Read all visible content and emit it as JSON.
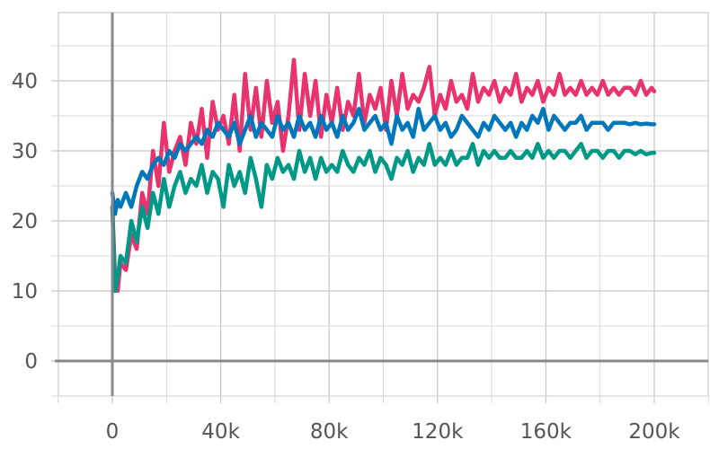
{
  "chart_data": {
    "type": "line",
    "title": "",
    "xlabel": "",
    "ylabel": "",
    "xlim": [
      -10000,
      220000
    ],
    "ylim": [
      -5,
      50
    ],
    "x_ticks": [
      0,
      40000,
      80000,
      120000,
      160000,
      200000
    ],
    "x_tick_labels": [
      "0",
      "40k",
      "80k",
      "120k",
      "160k",
      "200k"
    ],
    "y_ticks": [
      0,
      10,
      20,
      30,
      40
    ],
    "y_tick_labels": [
      "0",
      "10",
      "20",
      "30",
      "40"
    ],
    "grid": true,
    "legend": "none",
    "series": [
      {
        "color": "#e8336e",
        "x": [
          0,
          1000,
          2000,
          3000,
          5000,
          7000,
          9000,
          11000,
          13000,
          15000,
          17000,
          19000,
          21000,
          23000,
          25000,
          27000,
          29000,
          31000,
          33000,
          35000,
          37000,
          39000,
          41000,
          43000,
          45000,
          47000,
          49000,
          51000,
          53000,
          55000,
          57000,
          59000,
          61000,
          63000,
          65000,
          67000,
          69000,
          71000,
          73000,
          75000,
          77000,
          79000,
          81000,
          83000,
          85000,
          87000,
          89000,
          91000,
          93000,
          95000,
          97000,
          99000,
          101000,
          103000,
          105000,
          107000,
          109000,
          111000,
          113000,
          115000,
          117000,
          119000,
          121000,
          123000,
          125000,
          127000,
          129000,
          131000,
          133000,
          135000,
          137000,
          139000,
          141000,
          143000,
          145000,
          147000,
          149000,
          151000,
          153000,
          155000,
          157000,
          159000,
          161000,
          163000,
          165000,
          167000,
          169000,
          171000,
          173000,
          175000,
          177000,
          179000,
          181000,
          183000,
          185000,
          187000,
          189000,
          191000,
          193000,
          195000,
          197000,
          199000,
          200000
        ],
        "y": [
          22,
          12,
          10,
          14,
          13,
          18,
          16,
          24,
          21,
          30,
          25,
          34,
          27,
          30,
          32,
          28,
          34,
          31,
          36,
          29,
          37,
          33,
          35,
          31,
          38,
          30,
          41,
          33,
          39,
          32,
          40,
          34,
          37,
          30,
          35,
          43,
          33,
          41,
          35,
          40,
          32,
          38,
          34,
          39,
          33,
          37,
          35,
          41,
          34,
          38,
          36,
          39,
          33,
          40,
          35,
          41,
          36,
          38,
          37,
          39,
          42,
          35,
          38,
          36,
          40,
          37,
          38,
          36,
          41,
          37,
          39,
          38,
          40,
          37,
          39,
          38,
          41,
          37,
          39,
          38,
          40,
          37,
          39,
          38,
          41,
          38,
          39,
          38,
          40,
          38,
          39,
          38,
          40,
          38,
          39,
          38,
          39,
          39,
          38,
          40,
          38,
          39,
          38.5
        ]
      },
      {
        "color": "#009987",
        "x": [
          0,
          1000,
          2000,
          3000,
          5000,
          7000,
          9000,
          11000,
          13000,
          15000,
          17000,
          19000,
          21000,
          23000,
          25000,
          27000,
          29000,
          31000,
          33000,
          35000,
          37000,
          39000,
          41000,
          43000,
          45000,
          47000,
          49000,
          51000,
          53000,
          55000,
          57000,
          59000,
          61000,
          63000,
          65000,
          67000,
          69000,
          71000,
          73000,
          75000,
          77000,
          79000,
          81000,
          83000,
          85000,
          87000,
          89000,
          91000,
          93000,
          95000,
          97000,
          99000,
          101000,
          103000,
          105000,
          107000,
          109000,
          111000,
          113000,
          115000,
          117000,
          119000,
          121000,
          123000,
          125000,
          127000,
          129000,
          131000,
          133000,
          135000,
          137000,
          139000,
          141000,
          143000,
          145000,
          147000,
          149000,
          151000,
          153000,
          155000,
          157000,
          159000,
          161000,
          163000,
          165000,
          167000,
          169000,
          171000,
          173000,
          175000,
          177000,
          179000,
          181000,
          183000,
          185000,
          187000,
          189000,
          191000,
          193000,
          195000,
          197000,
          199000,
          200000
        ],
        "y": [
          22,
          10,
          12,
          15,
          14,
          20,
          17,
          22,
          19,
          24,
          21,
          26,
          22,
          25,
          27,
          24,
          26,
          25,
          28,
          24,
          27,
          26,
          22,
          28,
          25,
          27,
          24,
          29,
          26,
          22,
          28,
          26,
          29,
          27,
          28,
          26,
          30,
          27,
          29,
          26,
          29,
          27,
          28,
          27,
          30,
          28,
          27,
          29,
          28,
          30,
          27,
          29,
          28,
          26,
          29,
          28,
          30,
          27,
          29,
          28,
          31,
          28,
          29,
          28,
          30,
          28,
          29,
          29,
          31,
          28,
          30,
          29,
          30,
          29,
          29,
          30,
          29,
          29,
          30,
          29,
          31,
          29,
          30,
          29,
          30,
          30,
          29,
          30,
          31,
          29,
          30,
          30,
          29,
          30,
          30,
          29,
          30,
          30,
          29.5,
          30,
          29.5,
          29.7,
          29.7
        ]
      },
      {
        "color": "#0077bb",
        "x": [
          0,
          1000,
          2000,
          3000,
          5000,
          7000,
          9000,
          11000,
          13000,
          15000,
          17000,
          19000,
          21000,
          23000,
          25000,
          27000,
          29000,
          31000,
          33000,
          35000,
          37000,
          39000,
          41000,
          43000,
          45000,
          47000,
          49000,
          51000,
          53000,
          55000,
          57000,
          59000,
          61000,
          63000,
          65000,
          67000,
          69000,
          71000,
          73000,
          75000,
          77000,
          79000,
          81000,
          83000,
          85000,
          87000,
          89000,
          91000,
          93000,
          95000,
          97000,
          99000,
          101000,
          103000,
          105000,
          107000,
          109000,
          111000,
          113000,
          115000,
          117000,
          119000,
          121000,
          123000,
          125000,
          127000,
          129000,
          131000,
          133000,
          135000,
          137000,
          139000,
          141000,
          143000,
          145000,
          147000,
          149000,
          151000,
          153000,
          155000,
          157000,
          159000,
          161000,
          163000,
          165000,
          167000,
          169000,
          171000,
          173000,
          175000,
          177000,
          179000,
          181000,
          183000,
          185000,
          187000,
          189000,
          191000,
          193000,
          195000,
          197000,
          199000,
          200000
        ],
        "y": [
          24,
          21,
          23,
          22,
          24,
          22,
          25,
          27,
          26,
          28,
          29,
          28,
          30,
          29,
          31,
          30,
          31,
          32,
          31,
          33,
          32,
          34,
          33,
          32,
          34,
          31,
          33,
          35,
          32,
          34,
          33,
          32,
          35,
          33,
          34,
          32,
          35,
          33,
          34,
          32,
          35,
          33,
          34,
          32,
          35,
          33,
          34,
          36,
          33,
          34,
          35,
          33,
          34,
          31,
          35,
          33,
          34,
          32,
          36,
          33,
          34,
          35,
          33,
          34,
          32,
          33,
          35,
          34,
          33,
          32,
          34,
          33,
          35,
          34,
          33,
          34,
          32,
          34,
          33,
          35,
          34,
          36,
          33,
          35,
          34,
          33,
          34,
          34,
          35,
          33,
          34,
          34,
          34,
          33,
          34,
          34,
          34,
          33.8,
          34,
          33.8,
          33.9,
          33.8,
          33.8
        ]
      }
    ]
  }
}
